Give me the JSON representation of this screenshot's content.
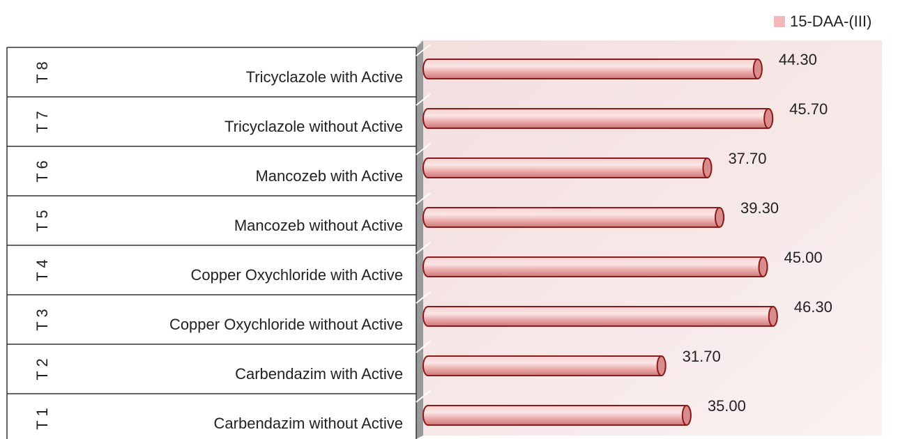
{
  "chart_data": {
    "type": "bar",
    "orientation": "horizontal",
    "legend": "top-right",
    "codes": [
      "T 8",
      "T 7",
      "T 6",
      "T 5",
      "T 4",
      "T 3",
      "T 2",
      "T 1"
    ],
    "categories": [
      "Tricyclazole with Active",
      "Tricyclazole without Active",
      "Mancozeb with Active",
      "Mancozeb without Active",
      "Copper Oxychloride with Active",
      "Copper Oxychloride without Active",
      "Carbendazim with Active",
      "Carbendazim without Active"
    ],
    "series": [
      {
        "name": "15-DAA-(III)",
        "color": "#f4b8b8",
        "values": [
          44.3,
          45.7,
          37.7,
          39.3,
          45.0,
          46.3,
          31.7,
          35.0
        ],
        "value_labels": [
          "44.30",
          "45.70",
          "37.70",
          "39.30",
          "45.00",
          "46.30",
          "31.70",
          "35.00"
        ]
      }
    ],
    "xlim": [
      0,
      60
    ]
  }
}
